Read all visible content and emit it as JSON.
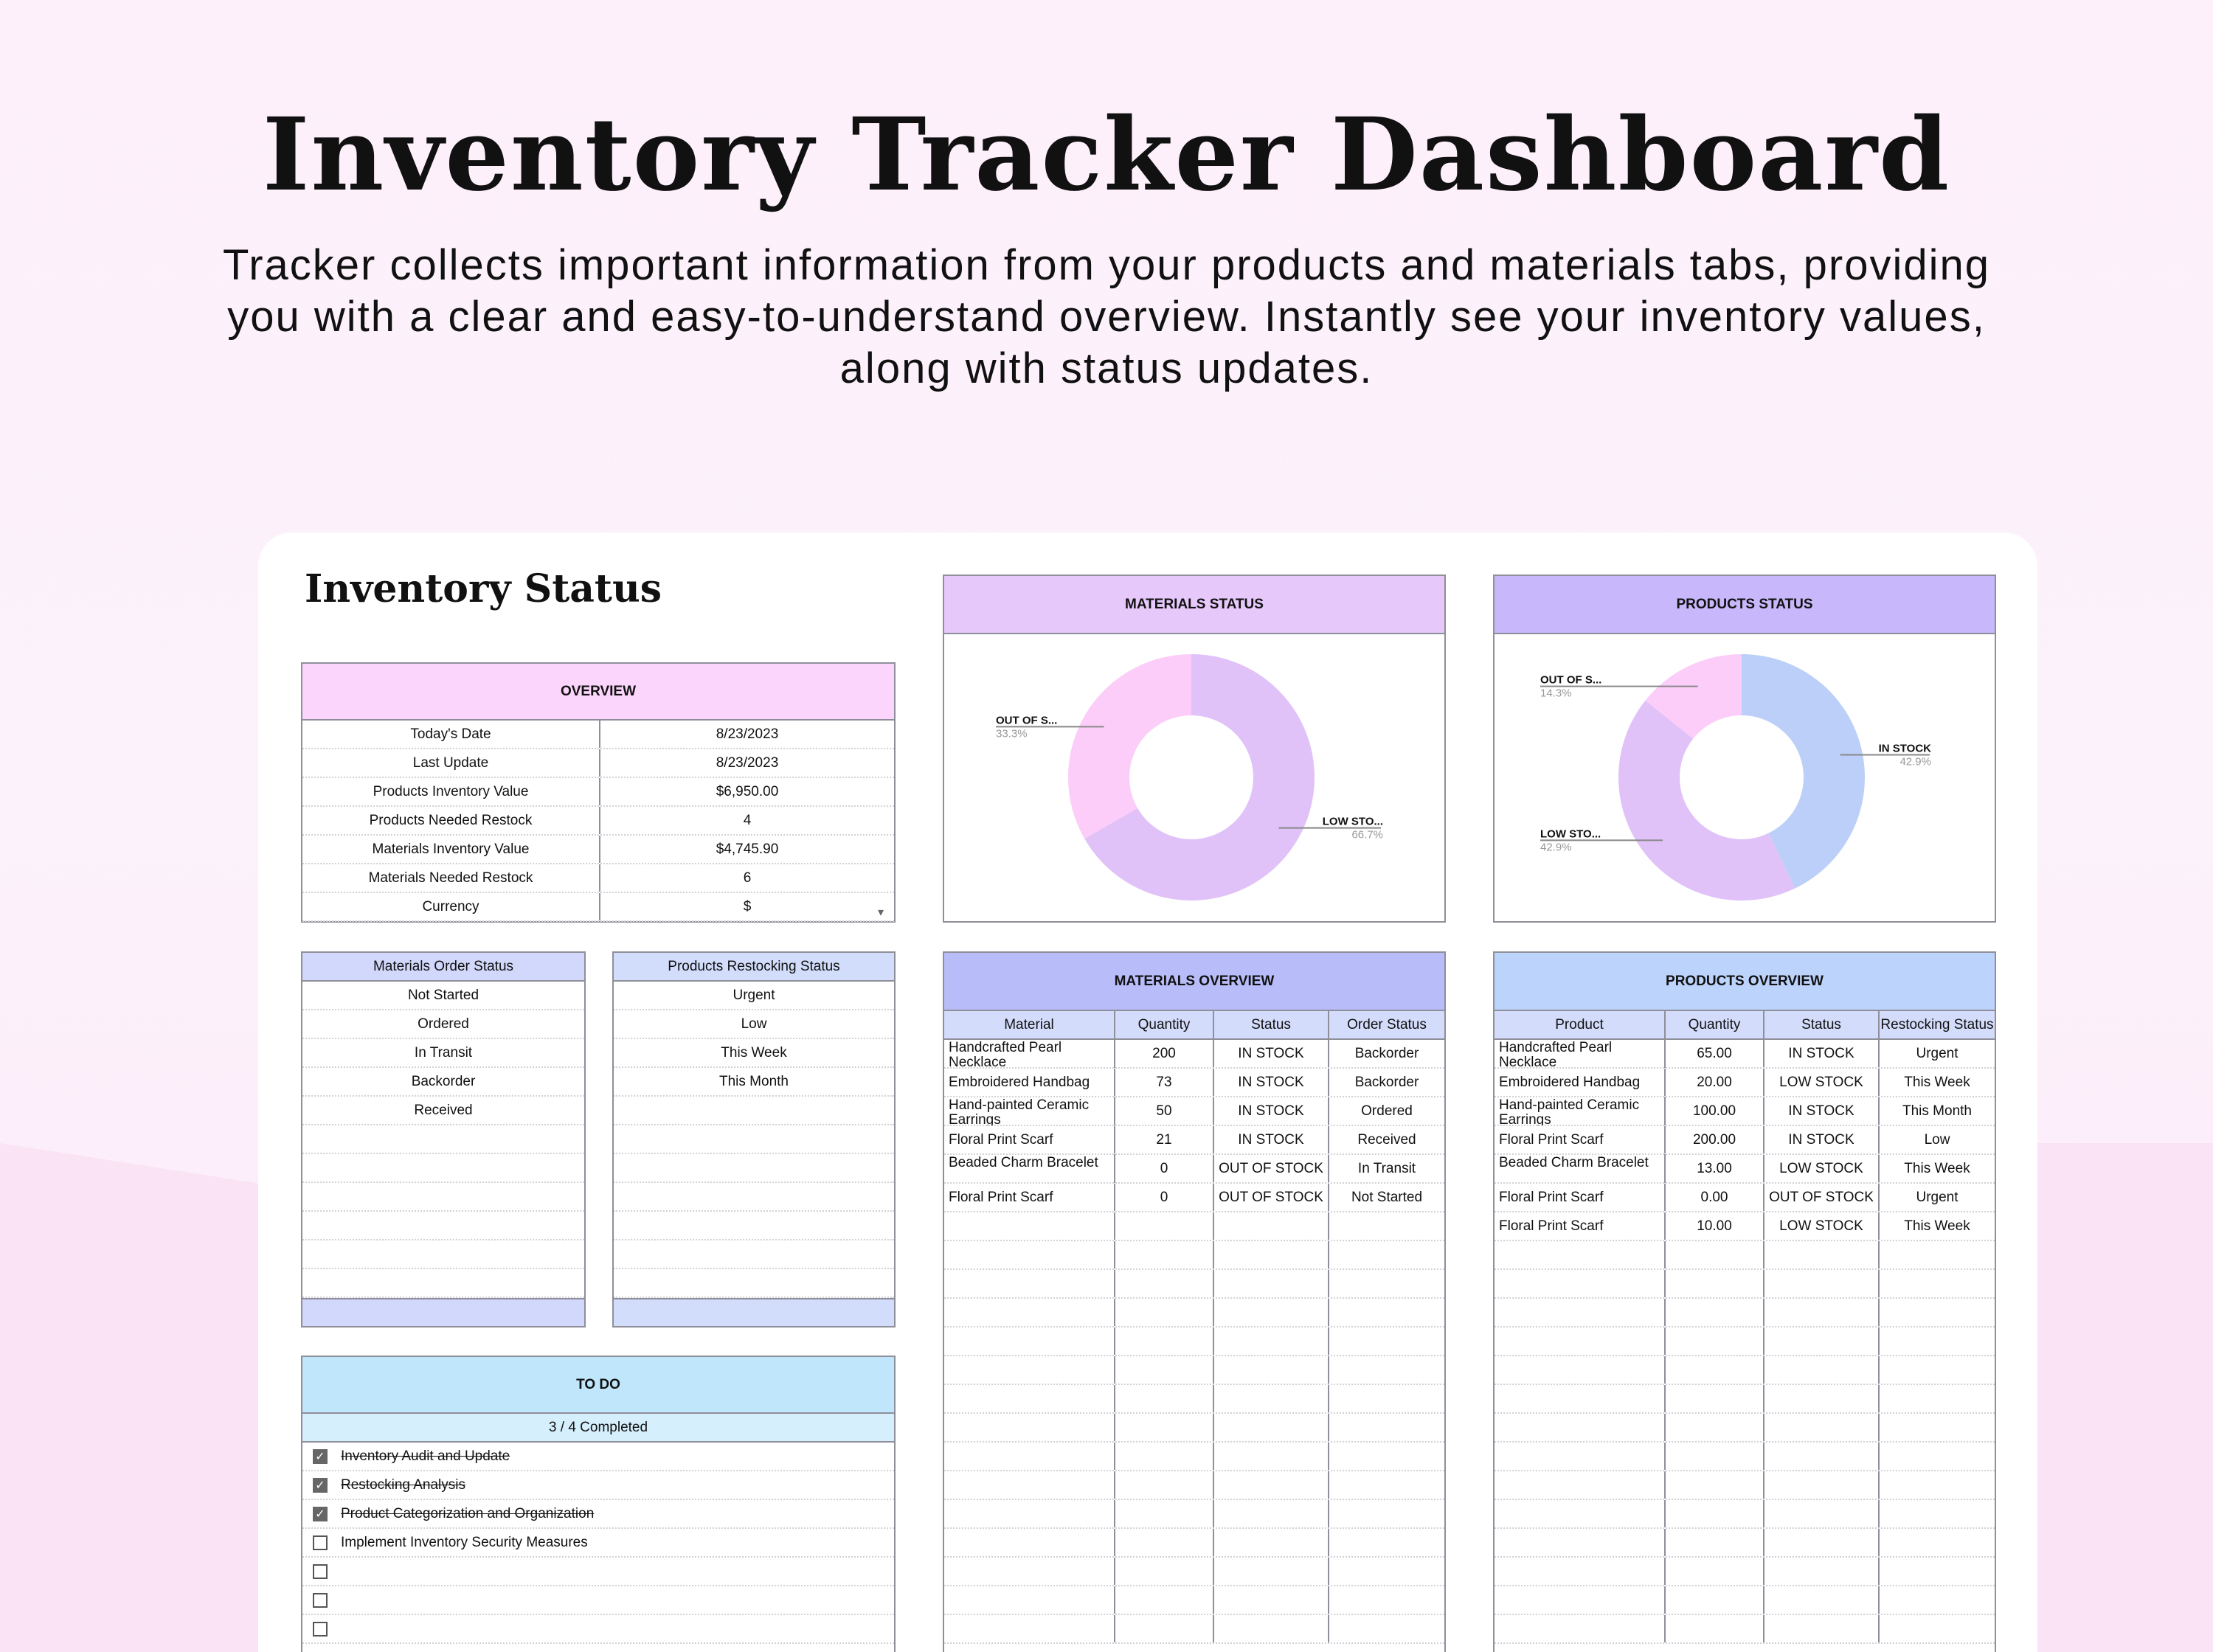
{
  "hero": {
    "title": "Inventory Tracker Dashboard",
    "subtitle": "Tracker collects important information from your products and materials tabs, providing you with a clear and easy-to-understand overview. Instantly see your inventory values, along with status updates."
  },
  "section_title": "Inventory Status",
  "overview": {
    "header": "OVERVIEW",
    "rows": [
      {
        "label": "Today's Date",
        "value": "8/23/2023"
      },
      {
        "label": "Last Update",
        "value": "8/23/2023"
      },
      {
        "label": "Products Inventory Value",
        "value": "$6,950.00"
      },
      {
        "label": "Products Needed Restock",
        "value": "4"
      },
      {
        "label": "Materials Inventory Value",
        "value": "$4,745.90"
      },
      {
        "label": "Materials Needed Restock",
        "value": "6"
      },
      {
        "label": "Currency",
        "value": "$"
      }
    ]
  },
  "materials_order_status": {
    "header": "Materials Order Status",
    "items": [
      "Not Started",
      "Ordered",
      "In Transit",
      "Backorder",
      "Received"
    ]
  },
  "products_restocking_status": {
    "header": "Products Restocking Status",
    "items": [
      "Urgent",
      "Low",
      "This Week",
      "This Month"
    ]
  },
  "todo": {
    "header": "TO DO",
    "progress": "3 / 4 Completed",
    "items": [
      {
        "text": "Inventory Audit and Update",
        "done": true
      },
      {
        "text": "Restocking Analysis",
        "done": true
      },
      {
        "text": "Product Categorization and Organization",
        "done": true
      },
      {
        "text": "Implement Inventory Security Measures",
        "done": false
      },
      {
        "text": "",
        "done": false
      },
      {
        "text": "",
        "done": false
      },
      {
        "text": "",
        "done": false
      }
    ]
  },
  "materials_status": {
    "header": "MATERIALS STATUS"
  },
  "products_status": {
    "header": "PRODUCTS STATUS"
  },
  "chart_data": [
    {
      "type": "pie",
      "title": "MATERIALS STATUS",
      "donut": true,
      "slices": [
        {
          "label": "LOW STO...",
          "value": 66.7,
          "pct": "66.7%",
          "color": "#e0c2f8"
        },
        {
          "label": "OUT OF S...",
          "value": 33.3,
          "pct": "33.3%",
          "color": "#fbcdf8"
        }
      ]
    },
    {
      "type": "pie",
      "title": "PRODUCTS STATUS",
      "donut": true,
      "slices": [
        {
          "label": "IN STOCK",
          "value": 42.9,
          "pct": "42.9%",
          "color": "#bccff8"
        },
        {
          "label": "LOW STO...",
          "value": 42.9,
          "pct": "42.9%",
          "color": "#e0c2f8"
        },
        {
          "label": "OUT OF S...",
          "value": 14.3,
          "pct": "14.3%",
          "color": "#fbcdf8"
        }
      ]
    }
  ],
  "materials_overview": {
    "header": "MATERIALS OVERVIEW",
    "columns": [
      "Material",
      "Quantity",
      "Status",
      "Order Status"
    ],
    "rows": [
      [
        "Handcrafted Pearl Necklace",
        "200",
        "IN STOCK",
        "Backorder"
      ],
      [
        "Embroidered Handbag",
        "73",
        "IN STOCK",
        "Backorder"
      ],
      [
        "Hand-painted Ceramic Earrings",
        "50",
        "IN STOCK",
        "Ordered"
      ],
      [
        "Floral Print Scarf",
        "21",
        "IN STOCK",
        "Received"
      ],
      [
        "Beaded Charm Bracelet",
        "0",
        "OUT OF STOCK",
        "In Transit"
      ],
      [
        "Floral Print Scarf",
        "0",
        "OUT OF STOCK",
        "Not Started"
      ]
    ]
  },
  "products_overview": {
    "header": "PRODUCTS OVERVIEW",
    "columns": [
      "Product",
      "Quantity",
      "Status",
      "Restocking Status"
    ],
    "rows": [
      [
        "Handcrafted Pearl Necklace",
        "65.00",
        "IN STOCK",
        "Urgent"
      ],
      [
        "Embroidered Handbag",
        "20.00",
        "LOW STOCK",
        "This Week"
      ],
      [
        "Hand-painted Ceramic Earrings",
        "100.00",
        "IN STOCK",
        "This Month"
      ],
      [
        "Floral Print Scarf",
        "200.00",
        "IN STOCK",
        "Low"
      ],
      [
        "Beaded Charm Bracelet",
        "13.00",
        "LOW STOCK",
        "This Week"
      ],
      [
        "Floral Print Scarf",
        "0.00",
        "OUT OF STOCK",
        "Urgent"
      ],
      [
        "Floral Print Scarf",
        "10.00",
        "LOW STOCK",
        "This Week"
      ]
    ]
  },
  "colors": {
    "overview_head": "#fbd5fb",
    "status_head": "#d2d8fb",
    "todo_head": "#bfe6fb",
    "todo_sub": "#d6effc",
    "materials_status_head": "#e6c8fb",
    "products_status_head": "#c8b8fb",
    "materials_overview_head": "#b8bdf9",
    "products_overview_head": "#bcd3fb",
    "colhead_bg": "#d4dcfb"
  }
}
